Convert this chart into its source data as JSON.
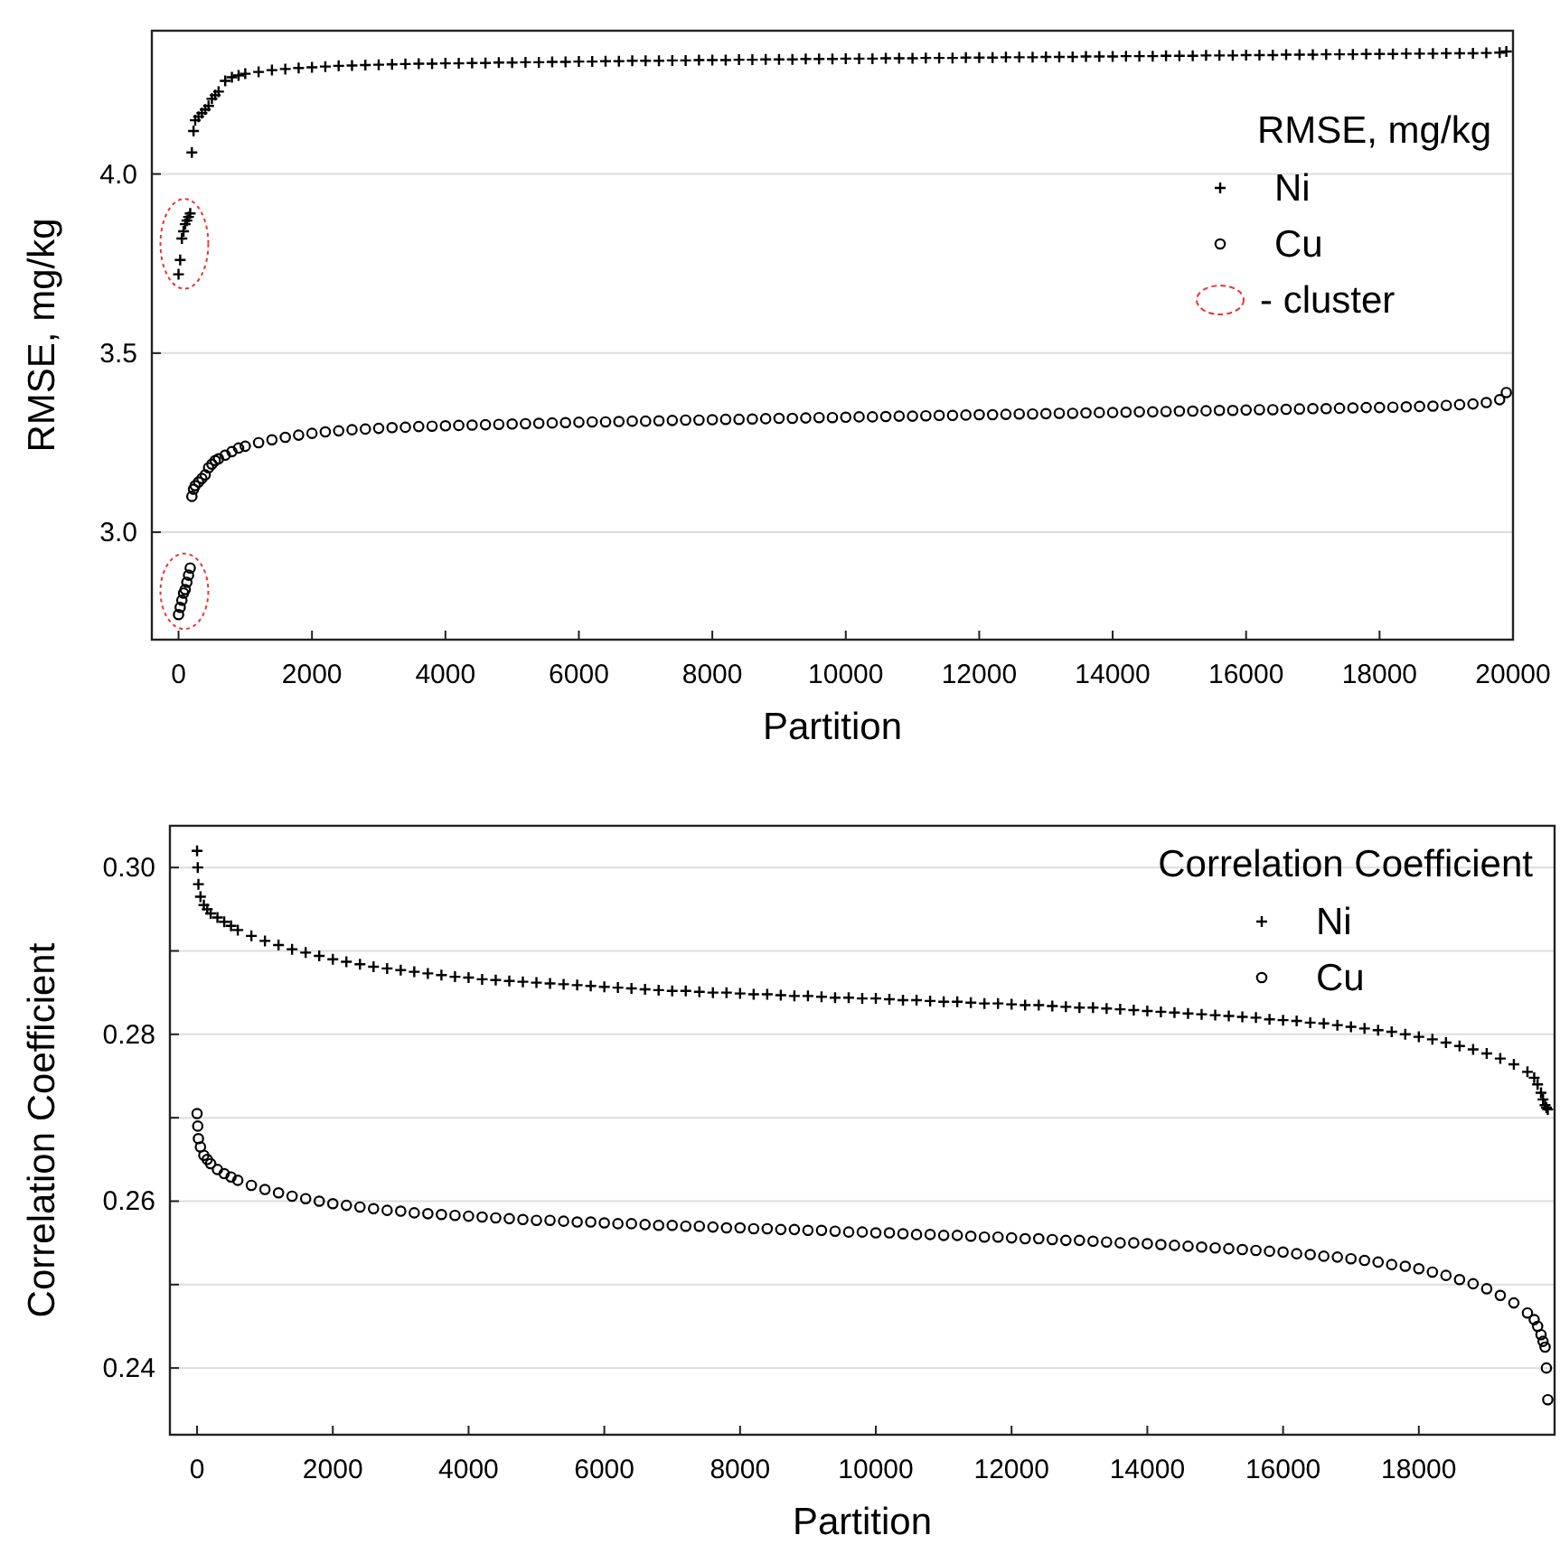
{
  "chart_data": [
    {
      "type": "scatter",
      "xlabel": "Partition",
      "ylabel": "RMSE, mg/kg",
      "legend_title": "RMSE, mg/kg",
      "legend": "top right",
      "grid": "y",
      "xlim": [
        -400,
        20000
      ],
      "ylim": [
        2.7,
        4.4
      ],
      "xticks": [
        0,
        2000,
        4000,
        6000,
        8000,
        10000,
        12000,
        14000,
        16000,
        18000,
        20000
      ],
      "yticks": [
        {
          "value": 3,
          "label": "3.0"
        },
        3.5,
        {
          "value": 4,
          "label": "4.0"
        }
      ],
      "annotations": [
        "- cluster"
      ],
      "x": [
        0,
        25,
        50,
        75,
        100,
        125,
        150,
        175,
        200,
        225,
        250,
        300,
        350,
        400,
        450,
        500,
        550,
        600,
        700,
        800,
        900,
        1000,
        1200,
        1400,
        1600,
        1800,
        2000,
        2200,
        2400,
        2600,
        2800,
        3000,
        3200,
        3400,
        3600,
        3800,
        4000,
        4200,
        4400,
        4600,
        4800,
        5000,
        5200,
        5400,
        5600,
        5800,
        6000,
        6200,
        6400,
        6600,
        6800,
        7000,
        7200,
        7400,
        7600,
        7800,
        8000,
        8200,
        8400,
        8600,
        8800,
        9000,
        9200,
        9400,
        9600,
        9800,
        10000,
        10200,
        10400,
        10600,
        10800,
        11000,
        11200,
        11400,
        11600,
        11800,
        12000,
        12200,
        12400,
        12600,
        12800,
        13000,
        13200,
        13400,
        13600,
        13800,
        14000,
        14200,
        14400,
        14600,
        14800,
        15000,
        15200,
        15400,
        15600,
        15800,
        16000,
        16200,
        16400,
        16600,
        16800,
        17000,
        17200,
        17400,
        17600,
        17800,
        18000,
        18200,
        18400,
        18600,
        18800,
        19000,
        19200,
        19400,
        19600,
        19800,
        19900
      ],
      "series": [
        {
          "name": "Ni",
          "color": "#000000",
          "marker": "cross",
          "values": [
            3.72,
            3.76,
            3.82,
            3.84,
            3.86,
            3.87,
            3.88,
            3.89,
            4.06,
            4.12,
            4.15,
            4.16,
            4.17,
            4.18,
            4.19,
            4.21,
            4.22,
            4.23,
            4.26,
            4.27,
            4.275,
            4.28,
            4.285,
            4.29,
            4.293,
            4.296,
            4.298,
            4.3,
            4.302,
            4.303,
            4.304,
            4.305,
            4.306,
            4.307,
            4.308,
            4.308,
            4.309,
            4.309,
            4.31,
            4.31,
            4.311,
            4.311,
            4.312,
            4.312,
            4.313,
            4.313,
            4.314,
            4.314,
            4.315,
            4.315,
            4.316,
            4.316,
            4.316,
            4.317,
            4.317,
            4.318,
            4.318,
            4.318,
            4.319,
            4.319,
            4.32,
            4.32,
            4.32,
            4.321,
            4.321,
            4.321,
            4.322,
            4.322,
            4.322,
            4.323,
            4.323,
            4.323,
            4.324,
            4.324,
            4.324,
            4.325,
            4.325,
            4.325,
            4.326,
            4.326,
            4.326,
            4.327,
            4.327,
            4.327,
            4.328,
            4.328,
            4.328,
            4.329,
            4.329,
            4.329,
            4.33,
            4.33,
            4.33,
            4.331,
            4.331,
            4.331,
            4.332,
            4.332,
            4.332,
            4.333,
            4.333,
            4.333,
            4.334,
            4.334,
            4.334,
            4.335,
            4.335,
            4.335,
            4.336,
            4.336,
            4.336,
            4.337,
            4.337,
            4.337,
            4.338,
            4.339,
            4.342
          ]
        },
        {
          "name": "Cu",
          "color": "#000000",
          "marker": "circle",
          "values": [
            2.77,
            2.79,
            2.81,
            2.83,
            2.84,
            2.86,
            2.88,
            2.9,
            3.1,
            3.12,
            3.13,
            3.14,
            3.15,
            3.16,
            3.18,
            3.19,
            3.2,
            3.205,
            3.215,
            3.225,
            3.235,
            3.24,
            3.25,
            3.258,
            3.265,
            3.271,
            3.276,
            3.28,
            3.283,
            3.286,
            3.288,
            3.29,
            3.292,
            3.293,
            3.295,
            3.296,
            3.297,
            3.298,
            3.299,
            3.3,
            3.301,
            3.302,
            3.303,
            3.304,
            3.305,
            3.306,
            3.307,
            3.308,
            3.308,
            3.309,
            3.31,
            3.31,
            3.311,
            3.312,
            3.313,
            3.313,
            3.314,
            3.315,
            3.315,
            3.316,
            3.317,
            3.318,
            3.318,
            3.319,
            3.32,
            3.32,
            3.321,
            3.322,
            3.322,
            3.323,
            3.324,
            3.324,
            3.325,
            3.326,
            3.326,
            3.327,
            3.328,
            3.328,
            3.329,
            3.33,
            3.33,
            3.331,
            3.332,
            3.332,
            3.333,
            3.334,
            3.334,
            3.335,
            3.336,
            3.336,
            3.337,
            3.338,
            3.338,
            3.339,
            3.34,
            3.34,
            3.341,
            3.342,
            3.342,
            3.343,
            3.344,
            3.345,
            3.345,
            3.346,
            3.347,
            3.348,
            3.348,
            3.349,
            3.35,
            3.351,
            3.352,
            3.354,
            3.356,
            3.358,
            3.362,
            3.37,
            3.39
          ]
        }
      ]
    },
    {
      "type": "scatter",
      "xlabel": "Partition",
      "ylabel": "Correlation Coefficient",
      "legend_title": "Correlation Coefficient",
      "legend": "top right",
      "grid": "y",
      "xlim": [
        -400,
        20000
      ],
      "ylim": [
        0.232,
        0.305
      ],
      "xticks": [
        0,
        2000,
        4000,
        6000,
        8000,
        10000,
        12000,
        14000,
        16000,
        18000
      ],
      "yticks": [
        {
          "value": 0.24,
          "label": "0.24"
        },
        {
          "value": 0.25,
          "label": null
        },
        {
          "value": 0.26,
          "label": "0.26"
        },
        {
          "value": 0.27,
          "label": null
        },
        {
          "value": 0.28,
          "label": "0.28"
        },
        {
          "value": 0.29,
          "label": null
        },
        {
          "value": 0.3,
          "label": "0.30"
        }
      ],
      "x": [
        0,
        10,
        20,
        50,
        100,
        150,
        200,
        300,
        400,
        500,
        600,
        800,
        1000,
        1200,
        1400,
        1600,
        1800,
        2000,
        2200,
        2400,
        2600,
        2800,
        3000,
        3200,
        3400,
        3600,
        3800,
        4000,
        4200,
        4400,
        4600,
        4800,
        5000,
        5200,
        5400,
        5600,
        5800,
        6000,
        6200,
        6400,
        6600,
        6800,
        7000,
        7200,
        7400,
        7600,
        7800,
        8000,
        8200,
        8400,
        8600,
        8800,
        9000,
        9200,
        9400,
        9600,
        9800,
        10000,
        10200,
        10400,
        10600,
        10800,
        11000,
        11200,
        11400,
        11600,
        11800,
        12000,
        12200,
        12400,
        12600,
        12800,
        13000,
        13200,
        13400,
        13600,
        13800,
        14000,
        14200,
        14400,
        14600,
        14800,
        15000,
        15200,
        15400,
        15600,
        15800,
        16000,
        16200,
        16400,
        16600,
        16800,
        17000,
        17200,
        17400,
        17600,
        17800,
        18000,
        18200,
        18400,
        18600,
        18800,
        19000,
        19200,
        19400,
        19600,
        19700,
        19750,
        19800,
        19830,
        19860,
        19880,
        19900
      ],
      "series": [
        {
          "name": "Ni",
          "color": "#000000",
          "marker": "cross",
          "values": [
            0.302,
            0.3,
            0.298,
            0.2965,
            0.2955,
            0.295,
            0.2945,
            0.294,
            0.2935,
            0.293,
            0.2925,
            0.2918,
            0.2912,
            0.2907,
            0.2902,
            0.2898,
            0.2894,
            0.289,
            0.2887,
            0.2884,
            0.2881,
            0.2879,
            0.2877,
            0.2875,
            0.2873,
            0.2871,
            0.2869,
            0.2868,
            0.2866,
            0.2865,
            0.2864,
            0.2863,
            0.2862,
            0.2861,
            0.286,
            0.2859,
            0.2858,
            0.2857,
            0.2856,
            0.2855,
            0.2854,
            0.2853,
            0.2852,
            0.2852,
            0.2851,
            0.285,
            0.285,
            0.2849,
            0.2848,
            0.2848,
            0.2847,
            0.2846,
            0.2846,
            0.2845,
            0.2844,
            0.2844,
            0.2843,
            0.2843,
            0.2842,
            0.2841,
            0.2841,
            0.284,
            0.2839,
            0.2839,
            0.2838,
            0.2837,
            0.2837,
            0.2836,
            0.2835,
            0.2835,
            0.2834,
            0.2833,
            0.2832,
            0.2832,
            0.2831,
            0.283,
            0.2829,
            0.2828,
            0.2827,
            0.2826,
            0.2825,
            0.2824,
            0.2823,
            0.2822,
            0.2821,
            0.282,
            0.2818,
            0.2817,
            0.2816,
            0.2814,
            0.2813,
            0.2811,
            0.2809,
            0.2807,
            0.2805,
            0.2803,
            0.28,
            0.2797,
            0.2794,
            0.279,
            0.2786,
            0.2782,
            0.2777,
            0.2771,
            0.2764,
            0.2755,
            0.2748,
            0.274,
            0.273,
            0.2722,
            0.2715,
            0.2712,
            0.271
          ]
        },
        {
          "name": "Cu",
          "color": "#000000",
          "marker": "circle",
          "values": [
            0.2705,
            0.269,
            0.2675,
            0.2665,
            0.2655,
            0.265,
            0.2645,
            0.2638,
            0.2633,
            0.2629,
            0.2625,
            0.2619,
            0.2614,
            0.261,
            0.2606,
            0.2603,
            0.26,
            0.2597,
            0.2595,
            0.2593,
            0.2591,
            0.2589,
            0.2588,
            0.2586,
            0.2585,
            0.2584,
            0.2583,
            0.2582,
            0.2581,
            0.258,
            0.2579,
            0.2578,
            0.2577,
            0.2577,
            0.2576,
            0.2575,
            0.2575,
            0.2574,
            0.2573,
            0.2573,
            0.2572,
            0.2571,
            0.2571,
            0.257,
            0.257,
            0.2569,
            0.2568,
            0.2568,
            0.2567,
            0.2567,
            0.2566,
            0.2566,
            0.2565,
            0.2565,
            0.2564,
            0.2563,
            0.2563,
            0.2562,
            0.2562,
            0.2561,
            0.256,
            0.256,
            0.2559,
            0.2559,
            0.2558,
            0.2557,
            0.2557,
            0.2556,
            0.2555,
            0.2555,
            0.2554,
            0.2553,
            0.2553,
            0.2552,
            0.2551,
            0.255,
            0.255,
            0.2549,
            0.2548,
            0.2547,
            0.2546,
            0.2545,
            0.2544,
            0.2543,
            0.2542,
            0.2541,
            0.254,
            0.2539,
            0.2537,
            0.2536,
            0.2534,
            0.2533,
            0.2531,
            0.2529,
            0.2527,
            0.2524,
            0.2522,
            0.2519,
            0.2515,
            0.2511,
            0.2506,
            0.2501,
            0.2495,
            0.2487,
            0.2478,
            0.2466,
            0.2458,
            0.245,
            0.244,
            0.2432,
            0.2425,
            0.24,
            0.2362
          ]
        }
      ]
    }
  ]
}
